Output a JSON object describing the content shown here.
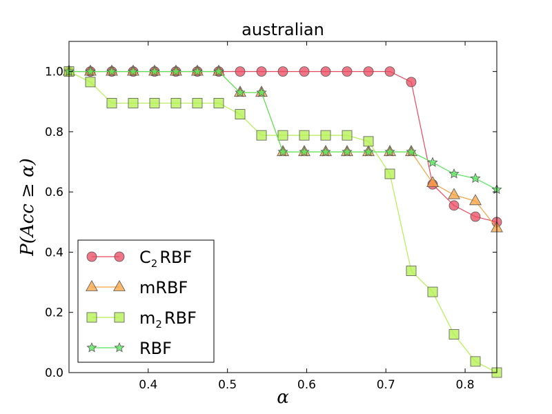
{
  "chart_data": {
    "type": "line",
    "title": "australian",
    "xlabel": "α",
    "ylabel": "P(Acc ≥ α)",
    "xlim": [
      0.3,
      0.84
    ],
    "ylim": [
      0.0,
      1.1
    ],
    "xticks": [
      0.4,
      0.5,
      0.6,
      0.7,
      0.8
    ],
    "xtick_labels": [
      "0.4",
      "0.5",
      "0.6",
      "0.7",
      "0.8"
    ],
    "yticks": [
      0.0,
      0.2,
      0.4,
      0.6,
      0.8,
      1.0
    ],
    "ytick_labels": [
      "0.0",
      "0.2",
      "0.4",
      "0.6",
      "0.8",
      "1.0"
    ],
    "legend_position": "lower-left",
    "x": [
      0.3,
      0.327,
      0.354,
      0.381,
      0.408,
      0.435,
      0.462,
      0.489,
      0.516,
      0.543,
      0.57,
      0.597,
      0.624,
      0.651,
      0.678,
      0.705,
      0.732,
      0.759,
      0.786,
      0.813,
      0.84
    ],
    "series": [
      {
        "name": "C2RBF",
        "legend_main": "C",
        "legend_sub": "2",
        "legend_rest": "RBF",
        "marker": "circle",
        "color": "#e8485e",
        "values": [
          1.0,
          1.0,
          1.0,
          1.0,
          1.0,
          1.0,
          1.0,
          1.0,
          1.0,
          1.0,
          1.0,
          1.0,
          1.0,
          1.0,
          1.0,
          1.0,
          0.965,
          0.625,
          0.555,
          0.518,
          0.5
        ]
      },
      {
        "name": "mRBF",
        "legend_main": "mRBF",
        "legend_sub": "",
        "legend_rest": "",
        "marker": "triangle",
        "color": "#f5a13f",
        "values": [
          1.0,
          1.0,
          1.0,
          1.0,
          1.0,
          1.0,
          1.0,
          1.0,
          0.93,
          0.93,
          0.733,
          0.733,
          0.733,
          0.733,
          0.733,
          0.733,
          0.733,
          0.63,
          0.59,
          0.57,
          0.48
        ]
      },
      {
        "name": "m2RBF",
        "legend_main": "m",
        "legend_sub": "2",
        "legend_rest": "RBF",
        "marker": "square",
        "color": "#b3f04f",
        "values": [
          1.0,
          0.965,
          0.895,
          0.895,
          0.895,
          0.895,
          0.895,
          0.895,
          0.858,
          0.788,
          0.788,
          0.788,
          0.788,
          0.788,
          0.768,
          0.66,
          0.338,
          0.268,
          0.127,
          0.037,
          0.0
        ]
      },
      {
        "name": "RBF",
        "legend_main": "RBF",
        "legend_sub": "",
        "legend_rest": "",
        "marker": "star",
        "color": "#55e75a",
        "values": [
          1.0,
          1.0,
          1.0,
          1.0,
          1.0,
          1.0,
          1.0,
          1.0,
          0.93,
          0.93,
          0.733,
          0.733,
          0.733,
          0.733,
          0.733,
          0.733,
          0.733,
          0.698,
          0.66,
          0.645,
          0.608
        ]
      }
    ]
  }
}
